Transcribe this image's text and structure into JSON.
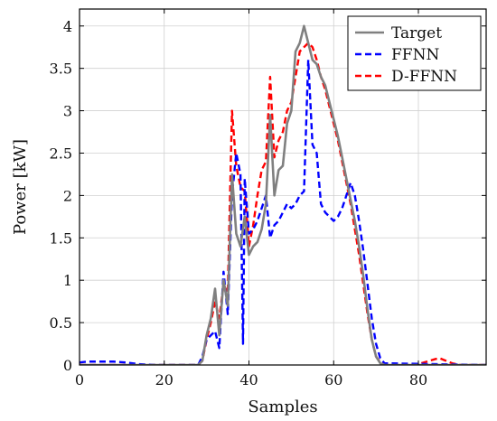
{
  "chart_data": {
    "type": "line",
    "xlabel": "Samples",
    "ylabel": "Power [kW]",
    "xlim": [
      0,
      96
    ],
    "ylim": [
      0,
      4.2
    ],
    "xticks": [
      0,
      20,
      40,
      60,
      80
    ],
    "yticks": [
      0,
      0.5,
      1,
      1.5,
      2,
      2.5,
      3,
      3.5,
      4
    ],
    "grid": true,
    "legend_position": "top-right",
    "series": [
      {
        "name": "Target",
        "color": "#808080",
        "dash": "solid",
        "x": [
          0,
          28,
          29,
          30,
          31,
          32,
          33,
          34,
          35,
          36,
          37,
          38,
          39,
          40,
          41,
          42,
          43,
          44,
          45,
          46,
          47,
          48,
          49,
          50,
          51,
          52,
          53,
          54,
          55,
          56,
          57,
          58,
          59,
          60,
          61,
          62,
          63,
          64,
          65,
          66,
          67,
          68,
          69,
          70,
          71,
          72,
          96
        ],
        "y": [
          0,
          0,
          0.05,
          0.35,
          0.55,
          0.9,
          0.35,
          1.0,
          0.7,
          2.25,
          1.55,
          1.4,
          1.75,
          1.3,
          1.4,
          1.45,
          1.6,
          1.9,
          2.95,
          2.0,
          2.3,
          2.35,
          2.85,
          3.0,
          3.7,
          3.8,
          4.0,
          3.8,
          3.6,
          3.55,
          3.4,
          3.3,
          3.1,
          2.9,
          2.7,
          2.45,
          2.2,
          1.95,
          1.7,
          1.4,
          1.05,
          0.65,
          0.3,
          0.1,
          0.02,
          0,
          0
        ]
      },
      {
        "name": "FFNN",
        "color": "#0000ff",
        "dash": "dashed",
        "x": [
          0,
          2,
          5,
          8,
          11,
          14,
          18,
          28,
          29,
          30,
          31,
          32,
          33,
          34,
          35,
          36,
          37,
          38,
          38.6,
          39,
          40,
          41,
          42,
          43,
          44,
          45,
          46,
          47,
          48,
          49,
          50,
          51,
          52,
          53,
          54,
          55,
          56,
          57,
          58,
          59,
          60,
          61,
          62,
          63,
          64,
          65,
          66,
          67,
          68,
          69,
          70,
          71,
          72,
          96
        ],
        "y": [
          0.03,
          0.04,
          0.04,
          0.04,
          0.03,
          0.01,
          0,
          0,
          0.1,
          0.3,
          0.35,
          0.4,
          0.2,
          1.1,
          0.6,
          2.0,
          2.5,
          2.25,
          0.25,
          2.2,
          1.55,
          1.6,
          1.7,
          1.85,
          2.0,
          1.5,
          1.65,
          1.7,
          1.8,
          1.9,
          1.85,
          1.9,
          2.0,
          2.05,
          3.6,
          2.6,
          2.5,
          1.9,
          1.8,
          1.75,
          1.7,
          1.75,
          1.85,
          2.0,
          2.15,
          2.0,
          1.7,
          1.35,
          0.95,
          0.55,
          0.25,
          0.08,
          0.02,
          0
        ]
      },
      {
        "name": "D-FFNN",
        "color": "#ff0000",
        "dash": "dashed",
        "x": [
          0,
          28,
          29,
          30,
          31,
          32,
          33,
          34,
          35,
          36,
          37,
          38,
          39,
          40,
          41,
          42,
          43,
          44,
          45,
          46,
          47,
          48,
          49,
          50,
          51,
          52,
          53,
          54,
          55,
          56,
          57,
          58,
          59,
          60,
          61,
          62,
          63,
          64,
          65,
          66,
          67,
          68,
          69,
          70,
          71,
          72,
          73,
          78,
          80,
          82,
          84,
          85,
          86,
          88,
          90,
          92,
          96
        ],
        "y": [
          0,
          0,
          0.05,
          0.3,
          0.5,
          0.75,
          0.55,
          0.95,
          0.85,
          3.0,
          2.35,
          2.1,
          2.05,
          1.4,
          1.65,
          2.0,
          2.3,
          2.4,
          3.4,
          2.45,
          2.65,
          2.75,
          3.0,
          3.1,
          3.4,
          3.7,
          3.75,
          3.8,
          3.75,
          3.6,
          3.4,
          3.25,
          3.05,
          2.85,
          2.65,
          2.4,
          2.15,
          1.9,
          1.6,
          1.3,
          0.95,
          0.6,
          0.3,
          0.1,
          0.03,
          0.01,
          0,
          0,
          0.01,
          0.04,
          0.07,
          0.08,
          0.06,
          0.02,
          0,
          0,
          0
        ]
      }
    ]
  }
}
